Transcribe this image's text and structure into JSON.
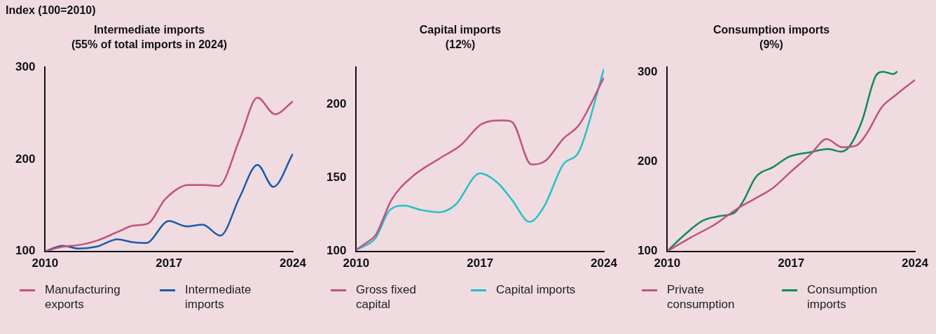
{
  "chart_data": [
    {
      "type": "line",
      "ylabel": "Index (100=2010)",
      "title": "Intermediate imports",
      "subtitle": "(55% of total imports in 2024)",
      "xlim": [
        2010,
        2024
      ],
      "xticks": [
        2010,
        2017,
        2024
      ],
      "ylim": [
        100,
        300
      ],
      "yticks": [
        100,
        200,
        300
      ],
      "legend": "bottom",
      "series": [
        {
          "name": "Manufacturing exports",
          "color": "#c0527e",
          "x": [
            2010,
            2011,
            2012,
            2013,
            2014.1,
            2015,
            2015.8,
            2016.8,
            2018.1,
            2019,
            2019.8,
            2021,
            2022,
            2023,
            2024
          ],
          "values": [
            100,
            105,
            107,
            112,
            121,
            128,
            130,
            157,
            172,
            172,
            171,
            222,
            267,
            249,
            263
          ]
        },
        {
          "name": "Intermediate imports",
          "color": "#1a5aab",
          "x": [
            2010,
            2011,
            2011.9,
            2012.9,
            2014.1,
            2014.9,
            2015.7,
            2017,
            2018,
            2018.9,
            2019.9,
            2021,
            2022,
            2022.9,
            2024
          ],
          "values": [
            100,
            106,
            103,
            105,
            113,
            110,
            109,
            133,
            127,
            129,
            117,
            159,
            194,
            170,
            206
          ]
        }
      ]
    },
    {
      "type": "line",
      "title": "Capital imports",
      "subtitle": "(12%)",
      "xlim": [
        2010,
        2024
      ],
      "xticks": [
        2010,
        2017,
        2024
      ],
      "ylim": [
        100,
        225
      ],
      "yticks": [
        100,
        150,
        200
      ],
      "legend": "bottom",
      "series": [
        {
          "name": "Gross fixed capital",
          "color": "#c0527e",
          "x": [
            2010,
            2010.6,
            2011.1,
            2012,
            2013.1,
            2014.7,
            2015.9,
            2017.1,
            2018.3,
            2018.8,
            2019.9,
            2020.7,
            2021.7,
            2022.6,
            2024
          ],
          "values": [
            101,
            106,
            111,
            135,
            150,
            163,
            172,
            186.5,
            189,
            188,
            159,
            161.5,
            176.5,
            186,
            218
          ]
        },
        {
          "name": "Capital imports",
          "color": "#1fc3c8",
          "x": [
            2010,
            2010.7,
            2011.1,
            2011.9,
            2012.7,
            2013.7,
            2014.7,
            2015.6,
            2017,
            2018,
            2018.8,
            2019.8,
            2020.6,
            2021.7,
            2022.6,
            2024
          ],
          "values": [
            101,
            105,
            109,
            128,
            131,
            128,
            126.5,
            131.5,
            153,
            146.5,
            135,
            120,
            130,
            159,
            168,
            224
          ]
        }
      ]
    },
    {
      "type": "line",
      "title": "Consumption imports",
      "subtitle": "(9%)",
      "xlim": [
        2010,
        2024
      ],
      "xticks": [
        2010,
        2017,
        2024
      ],
      "ylim": [
        100,
        305
      ],
      "yticks": [
        100,
        200,
        300
      ],
      "legend": "bottom",
      "series": [
        {
          "name": "Private consumption",
          "color": "#c0527e",
          "x": [
            2010,
            2011.3,
            2012.7,
            2014,
            2014.9,
            2016,
            2017,
            2018.1,
            2019,
            2019.9,
            2020.7,
            2021.3,
            2022.1,
            2022.9,
            2024
          ],
          "values": [
            100,
            115,
            130,
            148,
            158,
            171,
            189,
            208,
            225,
            216,
            218,
            232,
            260,
            274,
            291
          ]
        },
        {
          "name": "Consumption imports",
          "color": "#0e8a5e",
          "x": [
            2010,
            2010.9,
            2012,
            2012.9,
            2013.8,
            2014.3,
            2015,
            2016,
            2016.9,
            2018.1,
            2019.1,
            2019.8,
            2020.3,
            2021,
            2021.8,
            2022.2,
            2022.8,
            2023
          ],
          "values": [
            100,
            117,
            134,
            139,
            143,
            156,
            182.5,
            194,
            205.5,
            210.5,
            214,
            211,
            217,
            245,
            296,
            300,
            297.5,
            300.5
          ]
        }
      ]
    }
  ]
}
